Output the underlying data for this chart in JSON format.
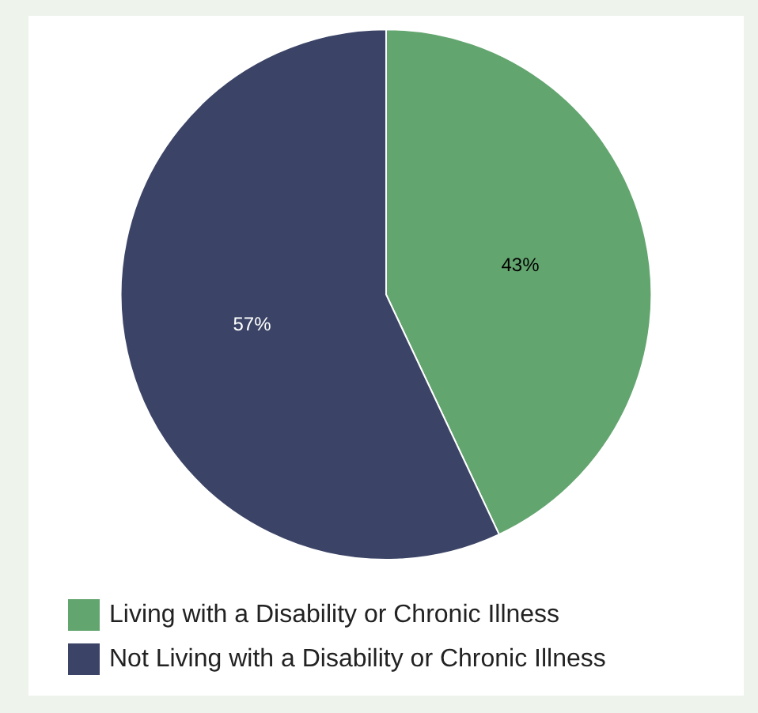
{
  "chart_data": {
    "type": "pie",
    "categories": [
      "Living with a Disability or Chronic Illness",
      "Not Living with a Disability or Chronic Illness"
    ],
    "values": [
      43,
      57
    ],
    "colors": [
      "#63a56f",
      "#3b4466"
    ],
    "value_labels": [
      "43%",
      "57%"
    ],
    "legend": "bottom left"
  }
}
